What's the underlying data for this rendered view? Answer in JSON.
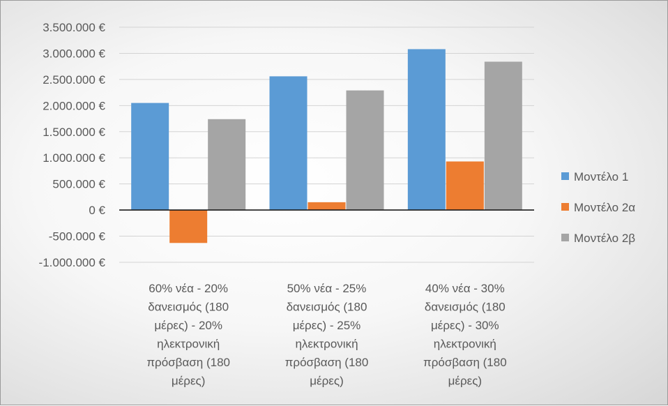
{
  "chart_data": {
    "type": "bar",
    "y_ticks": [
      "3.500.000 €",
      "3.000.000 €",
      "2.500.000 €",
      "2.000.000 €",
      "1.500.000 €",
      "1.000.000 €",
      "500.000 €",
      "0 €",
      "-500.000 €",
      "-1.000.000 €"
    ],
    "ylim": [
      -1000000,
      3500000
    ],
    "grid": true,
    "legend_position": "right",
    "categories": [
      [
        "60% νέα - 20%",
        "δανεισμός (180",
        "μέρες) - 20%",
        "ηλεκτρονική",
        "πρόσβαση (180",
        "μέρες)"
      ],
      [
        "50% νέα - 25%",
        "δανεισμός (180",
        "μέρες) - 25%",
        "ηλεκτρονική",
        "πρόσβαση (180",
        "μέρες)"
      ],
      [
        "40% νέα - 30%",
        "δανεισμός (180",
        "μέρες) - 30%",
        "ηλεκτρονική",
        "πρόσβαση (180",
        "μέρες)"
      ]
    ],
    "series": [
      {
        "name": "Μοντέλο 1",
        "color": "#5b9bd5",
        "values": [
          2050000,
          2560000,
          3080000
        ]
      },
      {
        "name": "Μοντέλο 2α",
        "color": "#ed7d31",
        "values": [
          -630000,
          150000,
          930000
        ]
      },
      {
        "name": "Μοντέλο 2β",
        "color": "#a5a5a5",
        "values": [
          1740000,
          2290000,
          2840000
        ]
      }
    ]
  }
}
